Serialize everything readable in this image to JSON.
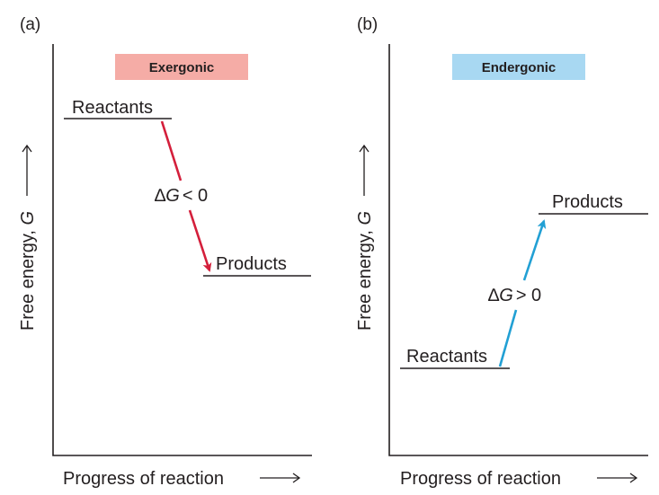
{
  "colors": {
    "exergonic_badge": "#f5aca6",
    "endergonic_badge": "#a8d8f2",
    "exergonic_arrow": "#d41f3b",
    "endergonic_arrow": "#22a0d4",
    "ink": "#231f20"
  },
  "panels": {
    "a": {
      "label": "(a)",
      "badge": "Exergonic",
      "reactants": "Reactants",
      "products": "Products",
      "delta": {
        "symbol": "∆",
        "variable": "G",
        "relation": "< 0"
      },
      "y_axis": {
        "text": "Free energy, ",
        "variable": "G"
      },
      "x_axis": {
        "text": "Progress of reaction"
      }
    },
    "b": {
      "label": "(b)",
      "badge": "Endergonic",
      "reactants": "Reactants",
      "products": "Products",
      "delta": {
        "symbol": "∆",
        "variable": "G",
        "relation": "> 0"
      },
      "y_axis": {
        "text": "Free energy, ",
        "variable": "G"
      },
      "x_axis": {
        "text": "Progress of reaction"
      }
    }
  }
}
